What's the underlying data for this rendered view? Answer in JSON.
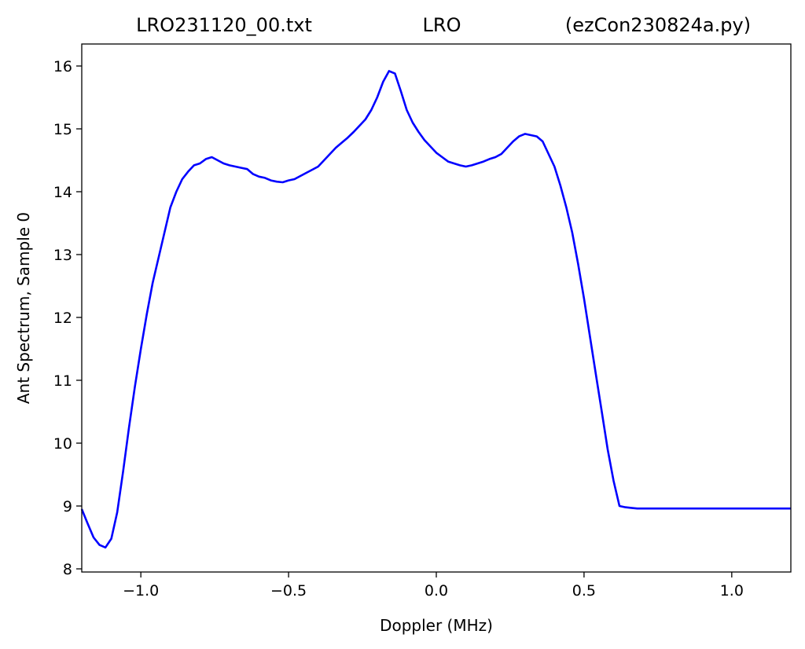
{
  "chart_data": {
    "type": "line",
    "title_left": "LRO231120_00.txt",
    "title_center": "LRO",
    "title_right": "(ezCon230824a.py)",
    "xlabel": "Doppler (MHz)",
    "ylabel": "Ant Spectrum, Sample 0",
    "xlim": [
      -1.2,
      1.2
    ],
    "ylim": [
      7.95,
      16.35
    ],
    "xticks": [
      -1.0,
      -0.5,
      0.0,
      0.5,
      1.0
    ],
    "xtick_labels": [
      "−1.0",
      "−0.5",
      "0.0",
      "0.5",
      "1.0"
    ],
    "yticks": [
      8,
      9,
      10,
      11,
      12,
      13,
      14,
      15,
      16
    ],
    "ytick_labels": [
      "8",
      "9",
      "10",
      "11",
      "12",
      "13",
      "14",
      "15",
      "16"
    ],
    "grid": false,
    "series": [
      {
        "color": "#0000ff",
        "x": [
          -1.2,
          -1.18,
          -1.16,
          -1.14,
          -1.12,
          -1.1,
          -1.08,
          -1.06,
          -1.04,
          -1.02,
          -1.0,
          -0.98,
          -0.96,
          -0.94,
          -0.92,
          -0.9,
          -0.88,
          -0.86,
          -0.84,
          -0.82,
          -0.8,
          -0.78,
          -0.76,
          -0.74,
          -0.72,
          -0.7,
          -0.68,
          -0.66,
          -0.64,
          -0.62,
          -0.6,
          -0.58,
          -0.56,
          -0.54,
          -0.52,
          -0.5,
          -0.48,
          -0.46,
          -0.44,
          -0.42,
          -0.4,
          -0.38,
          -0.36,
          -0.34,
          -0.32,
          -0.3,
          -0.28,
          -0.26,
          -0.24,
          -0.22,
          -0.2,
          -0.18,
          -0.16,
          -0.14,
          -0.12,
          -0.1,
          -0.08,
          -0.06,
          -0.04,
          -0.02,
          0.0,
          0.02,
          0.04,
          0.06,
          0.08,
          0.1,
          0.12,
          0.14,
          0.16,
          0.18,
          0.2,
          0.22,
          0.24,
          0.26,
          0.28,
          0.3,
          0.32,
          0.34,
          0.36,
          0.38,
          0.4,
          0.42,
          0.44,
          0.46,
          0.48,
          0.5,
          0.52,
          0.54,
          0.56,
          0.58,
          0.6,
          0.62,
          0.64,
          0.66,
          0.68,
          0.7,
          0.72,
          0.74,
          0.76,
          0.78,
          0.8,
          0.82,
          0.84,
          0.86,
          0.88,
          0.9,
          0.92,
          0.94,
          0.96,
          0.98,
          1.0,
          1.02,
          1.04,
          1.06,
          1.08,
          1.1,
          1.12,
          1.14,
          1.16,
          1.18,
          1.2
        ],
        "y": [
          8.95,
          8.72,
          8.5,
          8.38,
          8.34,
          8.48,
          8.9,
          9.55,
          10.25,
          10.9,
          11.5,
          12.05,
          12.55,
          12.95,
          13.35,
          13.75,
          14.0,
          14.2,
          14.32,
          14.42,
          14.45,
          14.52,
          14.55,
          14.5,
          14.45,
          14.42,
          14.4,
          14.38,
          14.36,
          14.28,
          14.24,
          14.22,
          14.18,
          14.16,
          14.15,
          14.18,
          14.2,
          14.25,
          14.3,
          14.35,
          14.4,
          14.5,
          14.6,
          14.7,
          14.78,
          14.86,
          14.95,
          15.05,
          15.15,
          15.3,
          15.5,
          15.75,
          15.92,
          15.88,
          15.6,
          15.3,
          15.1,
          14.95,
          14.82,
          14.72,
          14.62,
          14.55,
          14.48,
          14.45,
          14.42,
          14.4,
          14.42,
          14.45,
          14.48,
          14.52,
          14.55,
          14.6,
          14.7,
          14.8,
          14.88,
          14.92,
          14.9,
          14.88,
          14.8,
          14.6,
          14.4,
          14.1,
          13.75,
          13.35,
          12.85,
          12.3,
          11.7,
          11.1,
          10.5,
          9.9,
          9.4,
          9.0,
          8.98,
          8.97,
          8.96,
          8.96,
          8.96,
          8.96,
          8.96,
          8.96,
          8.96,
          8.96,
          8.96,
          8.96,
          8.96,
          8.96,
          8.96,
          8.96,
          8.96,
          8.96,
          8.96,
          8.96,
          8.96,
          8.96,
          8.96,
          8.96,
          8.96,
          8.96,
          8.96,
          8.96,
          8.96
        ]
      }
    ]
  }
}
